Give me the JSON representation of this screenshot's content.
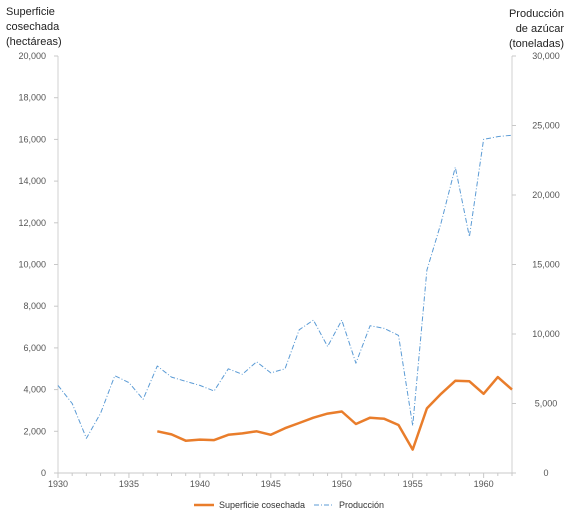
{
  "chart_data": {
    "type": "line",
    "y_left_label": [
      "Superficie",
      "cosechada",
      "(hectáreas)"
    ],
    "y_right_label": [
      "Producción",
      "de azúcar",
      "(toneladas)"
    ],
    "y_left_range": [
      0,
      20000
    ],
    "y_right_range": [
      0,
      30000
    ],
    "y_left_ticks": [
      "0",
      "2,000",
      "4,000",
      "6,000",
      "8,000",
      "10,000",
      "12,000",
      "14,000",
      "16,000",
      "18,000",
      "20,000"
    ],
    "y_right_ticks": [
      "0",
      "5,000",
      "10,000",
      "15,000",
      "20,000",
      "25,000",
      "30,000"
    ],
    "x_range": [
      1930,
      1962
    ],
    "x_ticks": [
      "1930",
      "1935",
      "1940",
      "1945",
      "1950",
      "1955",
      "1960"
    ],
    "series": [
      {
        "name": "Superficie cosechada",
        "axis": "left",
        "color": "#E97D2B",
        "style": "solid",
        "x": [
          1937,
          1938,
          1939,
          1940,
          1941,
          1942,
          1943,
          1944,
          1945,
          1946,
          1947,
          1948,
          1949,
          1950,
          1951,
          1952,
          1953,
          1954,
          1955,
          1956,
          1957,
          1958,
          1959,
          1960,
          1961,
          1962
        ],
        "values": [
          2000,
          1850,
          1550,
          1600,
          1580,
          1830,
          1900,
          2000,
          1830,
          2150,
          2400,
          2650,
          2850,
          2950,
          2350,
          2650,
          2600,
          2300,
          1120,
          3100,
          3800,
          4420,
          4400,
          3800,
          4600,
          4000
        ]
      },
      {
        "name": "Producción",
        "axis": "right",
        "color": "#5B9BD5",
        "style": "dash-dot",
        "x": [
          1930,
          1931,
          1932,
          1933,
          1934,
          1935,
          1936,
          1937,
          1938,
          1939,
          1940,
          1941,
          1942,
          1943,
          1944,
          1945,
          1946,
          1947,
          1948,
          1949,
          1950,
          1951,
          1952,
          1953,
          1954,
          1955,
          1956,
          1957,
          1958,
          1959,
          1960,
          1961,
          1962
        ],
        "values": [
          6300,
          5000,
          2500,
          4300,
          7000,
          6500,
          5300,
          7700,
          6900,
          6600,
          6300,
          5900,
          7500,
          7100,
          8000,
          7200,
          7500,
          10300,
          11000,
          9100,
          11000,
          7900,
          10600,
          10400,
          9900,
          3400,
          14600,
          18000,
          22000,
          17000,
          24000,
          24200,
          24300
        ]
      }
    ],
    "legend_position": "bottom"
  }
}
